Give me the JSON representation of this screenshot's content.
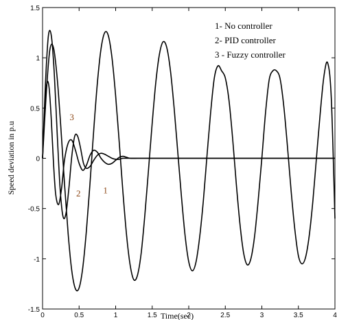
{
  "chart_data": {
    "type": "line",
    "xlabel": "Time(sec)",
    "ylabel": "Speed deviation in p.u",
    "xlim": [
      0,
      4
    ],
    "ylim": [
      -1.5,
      1.5
    ],
    "xticks": [
      "0",
      "0.5",
      "1",
      "1.5",
      "2",
      "2.5",
      "3",
      "3.5",
      "4"
    ],
    "yticks": [
      "1.5",
      "1",
      "0.5",
      "0",
      "-0.5",
      "-1",
      "-1.5"
    ],
    "legend_position": "top-right",
    "legend": [
      "1- No controller",
      "2- PID controller",
      "3 - Fuzzy controller"
    ],
    "annotations": [
      {
        "text": "3",
        "x": 0.37,
        "y": 0.38,
        "color": "#8b4513"
      },
      {
        "text": "2",
        "x": 0.46,
        "y": -0.38,
        "color": "#8b4513"
      },
      {
        "text": "1",
        "x": 0.83,
        "y": -0.35,
        "color": "#8b4513"
      }
    ],
    "series": [
      {
        "name": "1- No controller",
        "color": "#000000",
        "x": [
          0,
          0.05,
          0.1,
          0.15,
          0.2,
          0.25,
          0.3,
          0.35,
          0.4,
          0.45,
          0.5,
          0.55,
          0.6,
          0.65,
          0.7,
          0.75,
          0.8,
          0.85,
          0.9,
          0.95,
          1.0,
          1.05,
          1.1,
          1.15,
          1.2,
          1.25,
          1.3,
          1.35,
          1.4,
          1.45,
          1.5,
          1.55,
          1.6,
          1.65,
          1.7,
          1.75,
          1.8,
          1.85,
          1.9,
          1.95,
          2.0,
          2.05,
          2.1,
          2.15,
          2.2,
          2.25,
          2.3,
          2.35,
          2.4,
          2.45,
          2.5,
          2.55,
          2.6,
          2.65,
          2.7,
          2.75,
          2.8,
          2.85,
          2.9,
          2.95,
          3.0,
          3.05,
          3.1,
          3.15,
          3.2,
          3.25,
          3.3,
          3.35,
          3.4,
          3.45,
          3.5,
          3.55,
          3.6,
          3.65,
          3.7,
          3.75,
          3.8,
          3.85,
          3.9,
          3.95,
          4.0
        ],
        "values": [
          0,
          0.64,
          1.08,
          1.1,
          0.8,
          0.31,
          -0.25,
          -0.75,
          -1.12,
          -1.3,
          -1.29,
          -1.09,
          -0.72,
          -0.24,
          0.28,
          0.75,
          1.09,
          1.25,
          1.22,
          1.0,
          0.62,
          0.15,
          -0.34,
          -0.77,
          -1.07,
          -1.21,
          -1.16,
          -0.94,
          -0.56,
          -0.11,
          0.35,
          0.76,
          1.04,
          1.16,
          1.1,
          0.87,
          0.5,
          0.06,
          -0.38,
          -0.77,
          -1.03,
          -1.12,
          -1.03,
          -0.78,
          -0.42,
          0.03,
          0.46,
          0.8,
          0.92,
          0.87,
          0.8,
          0.58,
          0.2,
          -0.25,
          -0.65,
          -0.94,
          -1.06,
          -1.0,
          -0.78,
          -0.42,
          0.0,
          0.45,
          0.78,
          0.87,
          0.87,
          0.79,
          0.52,
          0.12,
          -0.32,
          -0.7,
          -0.97,
          -1.05,
          -0.98,
          -0.76,
          -0.41,
          0.03,
          0.46,
          0.82,
          0.95,
          0.6,
          -0.6
        ]
      },
      {
        "name": "2- PID controller",
        "color": "#000000",
        "x": [
          0,
          0.04,
          0.08,
          0.12,
          0.16,
          0.2,
          0.24,
          0.28,
          0.32,
          0.36,
          0.4,
          0.44,
          0.48,
          0.52,
          0.56,
          0.6,
          0.65,
          0.7,
          0.75,
          0.8,
          0.85,
          0.9,
          0.95,
          1.0,
          1.05,
          1.1,
          1.2,
          1.3,
          1.4,
          1.6,
          1.8,
          2.0,
          2.5,
          3.0,
          3.5,
          4.0
        ],
        "values": [
          0,
          0.75,
          1.22,
          1.22,
          0.85,
          0.25,
          -0.3,
          -0.58,
          -0.55,
          -0.3,
          0.02,
          0.22,
          0.22,
          0.1,
          -0.05,
          -0.1,
          -0.08,
          -0.02,
          0.03,
          0.05,
          0.04,
          0.02,
          0.0,
          -0.01,
          -0.01,
          0.0,
          0.0,
          0.0,
          0.0,
          0.0,
          0.0,
          0.0,
          0.0,
          0.0,
          0.0,
          0.0
        ]
      },
      {
        "name": "3 - Fuzzy controller",
        "color": "#000000",
        "x": [
          0,
          0.03,
          0.06,
          0.09,
          0.12,
          0.15,
          0.18,
          0.22,
          0.26,
          0.3,
          0.35,
          0.4,
          0.45,
          0.5,
          0.55,
          0.6,
          0.65,
          0.7,
          0.75,
          0.8,
          0.85,
          0.9,
          0.95,
          1.0,
          1.05,
          1.1,
          1.15,
          1.2,
          1.3,
          1.4,
          1.6,
          1.8,
          2.0,
          2.5,
          3.0,
          3.5,
          4.0
        ],
        "values": [
          0,
          0.5,
          0.75,
          0.7,
          0.38,
          -0.05,
          -0.36,
          -0.46,
          -0.3,
          -0.02,
          0.15,
          0.18,
          0.08,
          -0.05,
          -0.12,
          -0.07,
          0.03,
          0.08,
          0.06,
          0.0,
          -0.04,
          -0.06,
          -0.05,
          -0.02,
          0.01,
          0.02,
          0.01,
          0.0,
          0.0,
          0.0,
          0.0,
          0.0,
          0.0,
          0.0,
          0.0,
          0.0,
          0.0
        ]
      }
    ]
  }
}
